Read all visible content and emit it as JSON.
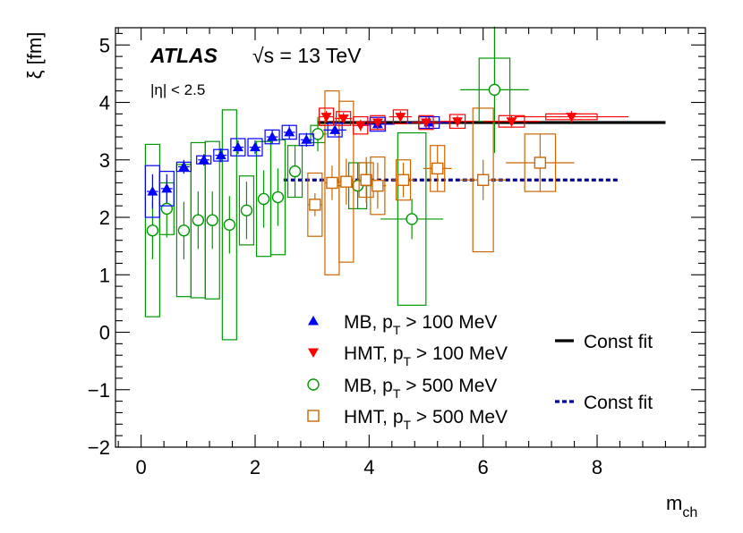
{
  "chart_data": {
    "type": "scatter",
    "xlabel": "m",
    "xlabel_sub": "ch",
    "ylabel": "ξ [fm]",
    "xlim": [
      -0.45,
      9.9
    ],
    "ylim": [
      -2,
      5.3
    ],
    "x_ticks": [
      0,
      2,
      4,
      6,
      8
    ],
    "y_ticks": [
      -2,
      -1,
      0,
      1,
      2,
      3,
      4,
      5
    ],
    "x_tick_labels": [
      "0",
      "2",
      "4",
      "6",
      "8"
    ],
    "y_tick_labels": [
      "−2",
      "−1",
      "0",
      "1",
      "2",
      "3",
      "4",
      "5"
    ],
    "grid": false,
    "annotations": {
      "experiment": "ATLAS",
      "energy": "√s = 13 TeV",
      "eta_cut": "|η| < 2.5"
    },
    "legend_placement": "bottom-center",
    "series": [
      {
        "name": "MB, pT > 100 MeV",
        "label_main": "MB, p",
        "label_sub": "T",
        "label_rest": " > 100 MeV",
        "color": "#0000ff",
        "marker": "triangle-up",
        "points": [
          {
            "x": 0.2,
            "y": 2.45,
            "xerr": 0.1,
            "stat": 0.3,
            "sys": 0.45
          },
          {
            "x": 0.45,
            "y": 2.5,
            "xerr": 0.1,
            "stat": 0.25,
            "sys": 0.3
          },
          {
            "x": 0.75,
            "y": 2.88,
            "xerr": 0.1,
            "stat": 0.12,
            "sys": 0.08
          },
          {
            "x": 1.1,
            "y": 3.0,
            "xerr": 0.1,
            "stat": 0.1,
            "sys": 0.07
          },
          {
            "x": 1.4,
            "y": 3.08,
            "xerr": 0.1,
            "stat": 0.12,
            "sys": 0.1
          },
          {
            "x": 1.7,
            "y": 3.22,
            "xerr": 0.1,
            "stat": 0.12,
            "sys": 0.15
          },
          {
            "x": 2.0,
            "y": 3.22,
            "xerr": 0.1,
            "stat": 0.12,
            "sys": 0.15
          },
          {
            "x": 2.3,
            "y": 3.4,
            "xerr": 0.1,
            "stat": 0.12,
            "sys": 0.12
          },
          {
            "x": 2.6,
            "y": 3.48,
            "xerr": 0.1,
            "stat": 0.12,
            "sys": 0.12
          },
          {
            "x": 2.9,
            "y": 3.35,
            "xerr": 0.1,
            "stat": 0.12,
            "sys": 0.1
          },
          {
            "x": 3.4,
            "y": 3.52,
            "xerr": 0.2,
            "stat": 0.1,
            "sys": 0.12
          },
          {
            "x": 4.15,
            "y": 3.62,
            "xerr": 0.3,
            "stat": 0.1,
            "sys": 0.12
          },
          {
            "x": 5.05,
            "y": 3.65,
            "xerr": 0.4,
            "stat": 0.1,
            "sys": 0.1
          }
        ]
      },
      {
        "name": "HMT, pT > 100 MeV",
        "label_main": "HMT, p",
        "label_sub": "T",
        "label_rest": " > 100 MeV",
        "color": "#ff0000",
        "marker": "triangle-down",
        "points": [
          {
            "x": 3.25,
            "y": 3.75,
            "xerr": 0.12,
            "stat": 0.1,
            "sys": 0.15
          },
          {
            "x": 3.55,
            "y": 3.72,
            "xerr": 0.15,
            "stat": 0.1,
            "sys": 0.12
          },
          {
            "x": 3.85,
            "y": 3.6,
            "xerr": 0.15,
            "stat": 0.1,
            "sys": 0.15
          },
          {
            "x": 4.15,
            "y": 3.65,
            "xerr": 0.15,
            "stat": 0.1,
            "sys": 0.12
          },
          {
            "x": 4.55,
            "y": 3.75,
            "xerr": 0.2,
            "stat": 0.1,
            "sys": 0.12
          },
          {
            "x": 5.0,
            "y": 3.65,
            "xerr": 0.25,
            "stat": 0.1,
            "sys": 0.12
          },
          {
            "x": 5.55,
            "y": 3.67,
            "xerr": 0.3,
            "stat": 0.1,
            "sys": 0.12
          },
          {
            "x": 6.5,
            "y": 3.67,
            "xerr": 0.5,
            "stat": 0.1,
            "sys": 0.1
          },
          {
            "x": 7.55,
            "y": 3.75,
            "xerr": 1.0,
            "stat": 0.1,
            "sys": 0.05
          }
        ]
      },
      {
        "name": "MB, pT > 500 MeV",
        "label_main": "MB, p",
        "label_sub": "T",
        "label_rest": " > 500 MeV",
        "color": "#009900",
        "marker": "circle-open",
        "points": [
          {
            "x": 0.2,
            "y": 1.77,
            "xerr": 0.1,
            "stat": 0.5,
            "sys": 1.5
          },
          {
            "x": 0.45,
            "y": 2.15,
            "xerr": 0.1,
            "stat": 0.5,
            "sys": 0.45
          },
          {
            "x": 0.75,
            "y": 1.77,
            "xerr": 0.1,
            "stat": 0.5,
            "sys": 1.15
          },
          {
            "x": 1.0,
            "y": 1.95,
            "xerr": 0.1,
            "stat": 0.5,
            "sys": 1.35
          },
          {
            "x": 1.25,
            "y": 1.95,
            "xerr": 0.1,
            "stat": 0.5,
            "sys": 1.37
          },
          {
            "x": 1.55,
            "y": 1.87,
            "xerr": 0.1,
            "stat": 0.5,
            "sys": 2.0
          },
          {
            "x": 1.85,
            "y": 2.12,
            "xerr": 0.1,
            "stat": 0.5,
            "sys": 0.6
          },
          {
            "x": 2.15,
            "y": 2.32,
            "xerr": 0.1,
            "stat": 0.5,
            "sys": 1.0
          },
          {
            "x": 2.4,
            "y": 2.35,
            "xerr": 0.1,
            "stat": 0.5,
            "sys": 1.0
          },
          {
            "x": 2.7,
            "y": 2.8,
            "xerr": 0.1,
            "stat": 0.45,
            "sys": 0.45
          },
          {
            "x": 3.1,
            "y": 3.45,
            "xerr": 0.15,
            "stat": 0.3,
            "sys": 0.15
          },
          {
            "x": 3.8,
            "y": 2.55,
            "xerr": 0.35,
            "stat": 0.4,
            "sys": 0.4
          },
          {
            "x": 4.75,
            "y": 1.97,
            "xerr": 0.55,
            "stat": 0.35,
            "sys": 1.5
          },
          {
            "x": 6.2,
            "y": 4.22,
            "xerr": 0.6,
            "stat": 1.1,
            "sys": 0.55
          }
        ]
      },
      {
        "name": "HMT, pT > 500 MeV",
        "label_main": "HMT, p",
        "label_sub": "T",
        "label_rest": " > 500 MeV",
        "color": "#cc6600",
        "marker": "square-open",
        "points": [
          {
            "x": 3.05,
            "y": 2.22,
            "xerr": 0.12,
            "stat": 0.2,
            "sys": 0.55
          },
          {
            "x": 3.35,
            "y": 2.6,
            "xerr": 0.12,
            "stat": 0.3,
            "sys": 1.6
          },
          {
            "x": 3.6,
            "y": 2.62,
            "xerr": 0.15,
            "stat": 0.4,
            "sys": 1.4
          },
          {
            "x": 3.95,
            "y": 2.65,
            "xerr": 0.15,
            "stat": 0.4,
            "sys": 0.3
          },
          {
            "x": 4.15,
            "y": 2.55,
            "xerr": 0.15,
            "stat": 0.4,
            "sys": 0.5
          },
          {
            "x": 4.6,
            "y": 2.65,
            "xerr": 0.2,
            "stat": 0.3,
            "sys": 0.35
          },
          {
            "x": 5.2,
            "y": 2.85,
            "xerr": 0.25,
            "stat": 0.4,
            "sys": 0.4
          },
          {
            "x": 6.0,
            "y": 2.65,
            "xerr": 0.4,
            "stat": 0.35,
            "sys": 1.25
          },
          {
            "x": 7.0,
            "y": 2.95,
            "xerr": 0.6,
            "stat": 0.5,
            "sys": 0.5
          }
        ]
      }
    ],
    "fits": [
      {
        "name": "Const fit",
        "color": "#000000",
        "style": "solid",
        "y": 3.65,
        "x_range": [
          3.1,
          9.2
        ]
      },
      {
        "name": "Const fit",
        "color": "#000099",
        "style": "dashed",
        "y": 2.65,
        "x_range": [
          2.5,
          8.4
        ]
      }
    ]
  }
}
